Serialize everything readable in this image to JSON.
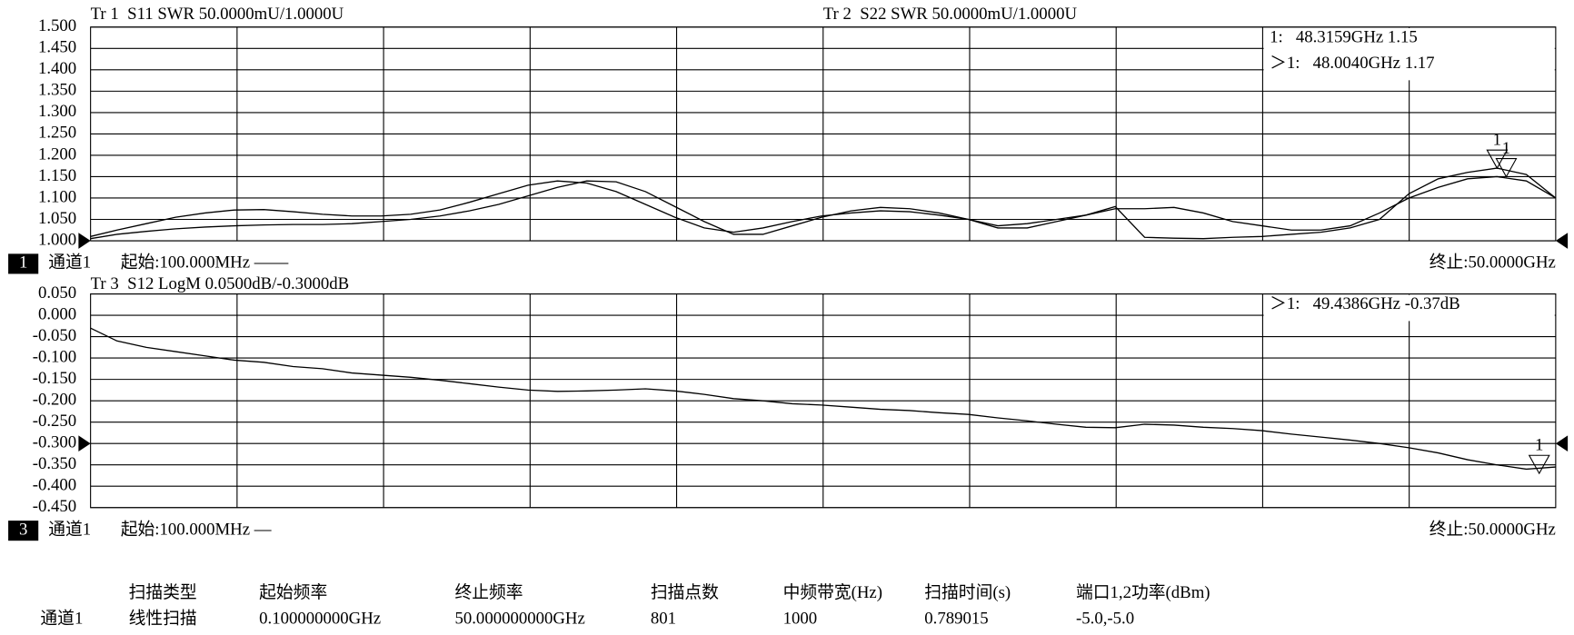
{
  "chart_data": [
    {
      "type": "line",
      "xlim": [
        0.1,
        50
      ],
      "ylim": [
        1.0,
        1.5
      ],
      "yticks": [
        {
          "value": 1.0,
          "label": "1.000"
        },
        {
          "value": 1.05,
          "label": "1.050"
        },
        {
          "value": 1.1,
          "label": "1.100"
        },
        {
          "value": 1.15,
          "label": "1.150"
        },
        {
          "value": 1.2,
          "label": "1.200"
        },
        {
          "value": 1.25,
          "label": "1.250"
        },
        {
          "value": 1.3,
          "label": "1.300"
        },
        {
          "value": 1.35,
          "label": "1.350"
        },
        {
          "value": 1.4,
          "label": "1.400"
        },
        {
          "value": 1.45,
          "label": "1.450"
        },
        {
          "value": 1.5,
          "label": "1.500"
        }
      ],
      "grid": true,
      "reference_level": 1.0,
      "x": [
        0.1,
        1,
        2,
        3,
        4,
        5,
        6,
        7,
        8,
        9,
        10,
        11,
        12,
        13,
        14,
        15,
        16,
        17,
        18,
        19,
        20,
        21,
        22,
        23,
        24,
        25,
        26,
        27,
        28,
        29,
        30,
        31,
        32,
        33,
        34,
        35,
        36,
        37,
        38,
        39,
        40,
        41,
        42,
        43,
        44,
        45,
        46,
        47,
        48,
        49,
        50
      ],
      "series": [
        {
          "name": "Tr 1  S11 SWR 50.0000mU/1.0000U",
          "color": "#000000",
          "values": [
            1.01,
            1.025,
            1.04,
            1.055,
            1.065,
            1.072,
            1.073,
            1.068,
            1.062,
            1.058,
            1.058,
            1.062,
            1.072,
            1.09,
            1.11,
            1.13,
            1.14,
            1.135,
            1.115,
            1.085,
            1.055,
            1.03,
            1.02,
            1.03,
            1.045,
            1.058,
            1.065,
            1.07,
            1.068,
            1.06,
            1.05,
            1.035,
            1.04,
            1.05,
            1.06,
            1.075,
            1.075,
            1.078,
            1.065,
            1.045,
            1.035,
            1.025,
            1.025,
            1.035,
            1.065,
            1.1,
            1.125,
            1.145,
            1.15,
            1.14,
            1.1
          ]
        },
        {
          "name": "Tr 2  S22 SWR 50.0000mU/1.0000U",
          "color": "#000000",
          "values": [
            1.005,
            1.015,
            1.022,
            1.028,
            1.032,
            1.035,
            1.037,
            1.038,
            1.038,
            1.04,
            1.045,
            1.05,
            1.058,
            1.07,
            1.085,
            1.105,
            1.125,
            1.14,
            1.138,
            1.115,
            1.08,
            1.045,
            1.015,
            1.015,
            1.035,
            1.055,
            1.07,
            1.078,
            1.075,
            1.065,
            1.05,
            1.03,
            1.03,
            1.045,
            1.06,
            1.08,
            1.008,
            1.006,
            1.005,
            1.008,
            1.01,
            1.015,
            1.02,
            1.03,
            1.05,
            1.11,
            1.145,
            1.16,
            1.17,
            1.155,
            1.1
          ]
        }
      ],
      "markers": [
        {
          "name": "1",
          "series": 0,
          "x": 48.3159,
          "y": 1.15,
          "readout": "1:   48.3159GHz 1.15"
        },
        {
          "name": "1",
          "series": 1,
          "x": 48.004,
          "y": 1.17,
          "readout": "＞1:   48.0040GHz 1.17"
        }
      ],
      "channel": {
        "number": "1",
        "name": "通道1",
        "start": "起始:100.000MHz ——",
        "stop": "终止:50.0000GHz"
      }
    },
    {
      "type": "line",
      "xlim": [
        0.1,
        50
      ],
      "ylim": [
        -0.45,
        0.05
      ],
      "yticks": [
        {
          "value": -0.45,
          "label": "-0.450"
        },
        {
          "value": -0.4,
          "label": "-0.400"
        },
        {
          "value": -0.35,
          "label": "-0.350"
        },
        {
          "value": -0.3,
          "label": "-0.300"
        },
        {
          "value": -0.25,
          "label": "-0.250"
        },
        {
          "value": -0.2,
          "label": "-0.200"
        },
        {
          "value": -0.15,
          "label": "-0.150"
        },
        {
          "value": -0.1,
          "label": "-0.100"
        },
        {
          "value": -0.05,
          "label": "-0.050"
        },
        {
          "value": 0,
          "label": "0.000"
        },
        {
          "value": 0.05,
          "label": "0.050"
        }
      ],
      "grid": true,
      "reference_level": -0.3,
      "x": [
        0.1,
        1,
        2,
        3,
        4,
        5,
        6,
        7,
        8,
        9,
        10,
        11,
        12,
        13,
        14,
        15,
        16,
        17,
        18,
        19,
        20,
        21,
        22,
        23,
        24,
        25,
        26,
        27,
        28,
        29,
        30,
        31,
        32,
        33,
        34,
        35,
        36,
        37,
        38,
        39,
        40,
        41,
        42,
        43,
        44,
        45,
        46,
        47,
        48,
        49,
        50
      ],
      "series": [
        {
          "name": "Tr 3  S12 LogM 0.0500dB/-0.3000dB",
          "color": "#000000",
          "values": [
            -0.03,
            -0.06,
            -0.075,
            -0.085,
            -0.095,
            -0.105,
            -0.11,
            -0.12,
            -0.125,
            -0.135,
            -0.14,
            -0.145,
            -0.152,
            -0.16,
            -0.168,
            -0.175,
            -0.178,
            -0.177,
            -0.175,
            -0.172,
            -0.177,
            -0.185,
            -0.195,
            -0.2,
            -0.207,
            -0.21,
            -0.215,
            -0.22,
            -0.223,
            -0.228,
            -0.232,
            -0.24,
            -0.247,
            -0.255,
            -0.262,
            -0.263,
            -0.255,
            -0.257,
            -0.262,
            -0.265,
            -0.27,
            -0.278,
            -0.285,
            -0.292,
            -0.3,
            -0.31,
            -0.322,
            -0.338,
            -0.35,
            -0.36,
            -0.355
          ]
        }
      ],
      "markers": [
        {
          "name": "1",
          "series": 0,
          "x": 49.4386,
          "y": -0.37,
          "readout": "＞1:   49.4386GHz -0.37dB"
        }
      ],
      "channel": {
        "number": "3",
        "name": "通道1",
        "start": "起始:100.000MHz —",
        "stop": "终止:50.0000GHz"
      }
    }
  ],
  "table": {
    "headers": [
      "扫描类型",
      "起始频率",
      "终止频率",
      "扫描点数",
      "中频带宽(Hz)",
      "扫描时间(s)",
      "端口1,2功率(dBm)"
    ],
    "row_label": "通道1",
    "row": [
      "线性扫描",
      "0.100000000GHz",
      "50.000000000GHz",
      "801",
      "1000",
      "0.789015",
      "-5.0,-5.0"
    ]
  }
}
